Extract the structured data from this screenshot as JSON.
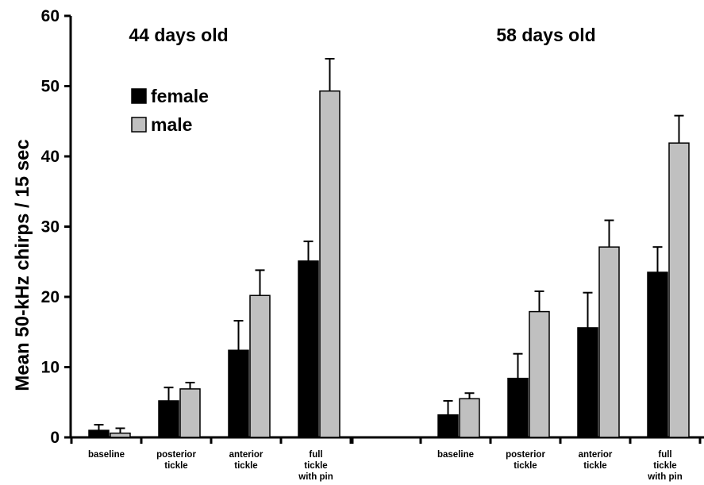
{
  "chart_data": {
    "type": "bar",
    "ylabel": "Mean 50-kHz chirps / 15 sec",
    "xlabel": "",
    "ylim": [
      0,
      60
    ],
    "yticks": [
      0,
      10,
      20,
      30,
      40,
      50,
      60
    ],
    "grid": false,
    "legend_position": "top-left",
    "groups": [
      {
        "title": "44 days old",
        "categories": [
          [
            "baseline"
          ],
          [
            "posterior",
            "tickle"
          ],
          [
            "anterior",
            "tickle"
          ],
          [
            "full",
            "tickle",
            "with pin"
          ]
        ],
        "series": [
          {
            "name": "female",
            "color": "#000000",
            "values": [
              1.0,
              5.2,
              12.4,
              25.1
            ],
            "errors": [
              0.8,
              1.9,
              4.2,
              2.8
            ]
          },
          {
            "name": "male",
            "color": "#c0c0c0",
            "values": [
              0.6,
              6.9,
              20.2,
              49.3
            ],
            "errors": [
              0.7,
              0.9,
              3.6,
              4.6
            ]
          }
        ]
      },
      {
        "title": "58 days old",
        "categories": [
          [
            "baseline"
          ],
          [
            "posterior",
            "tickle"
          ],
          [
            "anterior",
            "tickle"
          ],
          [
            "full",
            "tickle",
            "with pin"
          ]
        ],
        "series": [
          {
            "name": "female",
            "color": "#000000",
            "values": [
              3.2,
              8.4,
              15.6,
              23.5
            ],
            "errors": [
              2.0,
              3.5,
              5.0,
              3.6
            ]
          },
          {
            "name": "male",
            "color": "#c0c0c0",
            "values": [
              5.5,
              17.9,
              27.1,
              41.9
            ],
            "errors": [
              0.8,
              2.9,
              3.8,
              3.9
            ]
          }
        ]
      }
    ]
  }
}
